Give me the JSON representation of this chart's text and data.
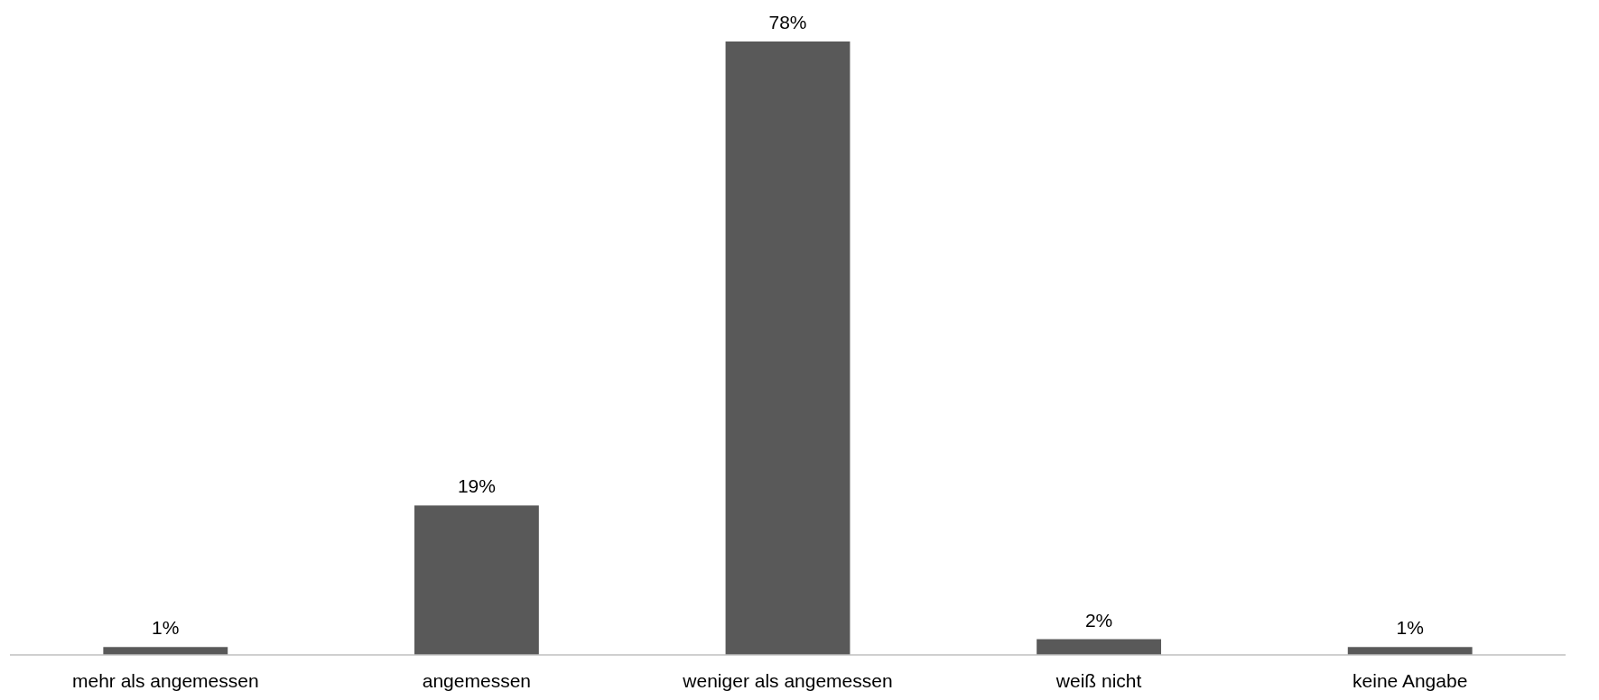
{
  "chart_data": {
    "type": "bar",
    "categories": [
      "mehr als angemessen",
      "angemessen",
      "weniger als angemessen",
      "weiß nicht",
      "keine Angabe"
    ],
    "values": [
      1,
      19,
      78,
      2,
      1
    ],
    "value_labels": [
      "1%",
      "19%",
      "78%",
      "2%",
      "1%"
    ],
    "color": "#595959"
  }
}
